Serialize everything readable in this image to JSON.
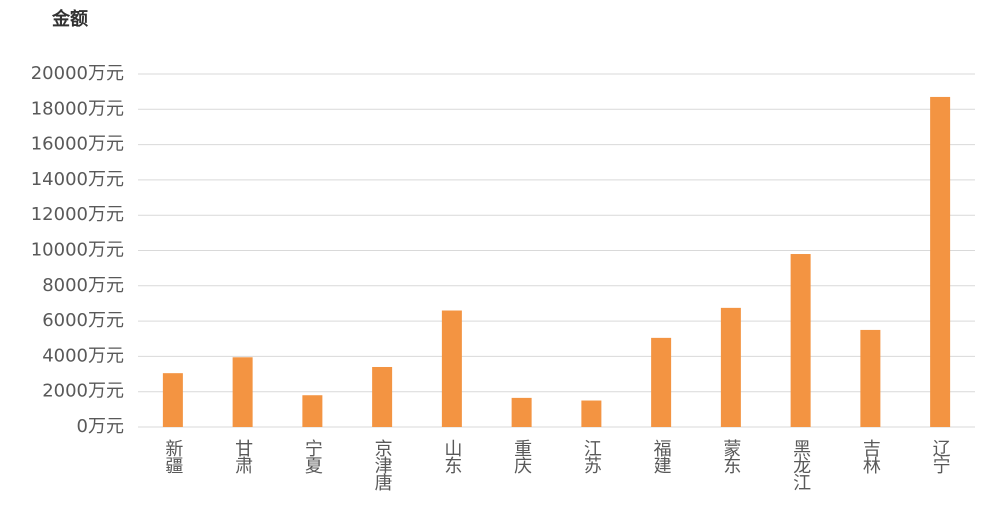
{
  "chart_data": {
    "type": "bar",
    "title": "金额",
    "categories": [
      "新疆",
      "甘肃",
      "宁夏",
      "京津唐",
      "山东",
      "重庆",
      "江苏",
      "福建",
      "蒙东",
      "黑龙江",
      "吉林",
      "辽宁"
    ],
    "values": [
      3050,
      3950,
      1800,
      3400,
      6600,
      1650,
      1500,
      5050,
      6750,
      9800,
      5500,
      18700
    ],
    "color": "#f39442",
    "ylim": [
      0,
      20000
    ],
    "yticks": [
      {
        "value": 0,
        "label": "0万元"
      },
      {
        "value": 2000,
        "label": "2000万元"
      },
      {
        "value": 4000,
        "label": "4000万元"
      },
      {
        "value": 6000,
        "label": "6000万元"
      },
      {
        "value": 8000,
        "label": "8000万元"
      },
      {
        "value": 10000,
        "label": "10000万元"
      },
      {
        "value": 12000,
        "label": "12000万元"
      },
      {
        "value": 14000,
        "label": "14000万元"
      },
      {
        "value": 16000,
        "label": "16000万元"
      },
      {
        "value": 18000,
        "label": "18000万元"
      },
      {
        "value": 20000,
        "label": "20000万元"
      }
    ],
    "grid": true
  }
}
